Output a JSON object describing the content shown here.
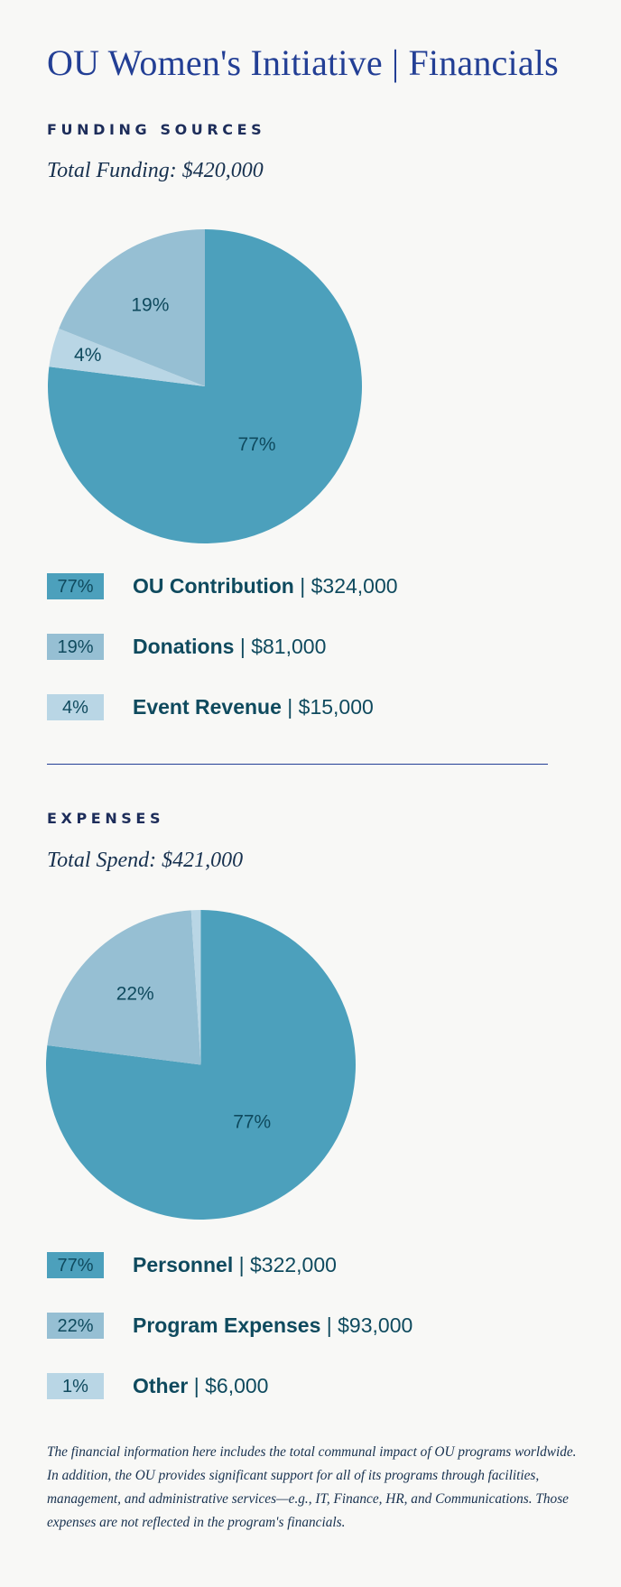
{
  "page": {
    "title": "OU Women's Initiative | Financials"
  },
  "funding": {
    "heading": "FUNDING SOURCES",
    "total": "Total Funding: $420,000",
    "legend": [
      {
        "pct": "77%",
        "label": "OU Contribution",
        "amount": "$324,000"
      },
      {
        "pct": "19%",
        "label": "Donations",
        "amount": "$81,000"
      },
      {
        "pct": "4%",
        "label": "Event Revenue",
        "amount": "$15,000"
      }
    ]
  },
  "expenses": {
    "heading": "EXPENSES",
    "total": "Total Spend: $421,000",
    "legend": [
      {
        "pct": "77%",
        "label": "Personnel",
        "amount": "$322,000"
      },
      {
        "pct": "22%",
        "label": "Program Expenses",
        "amount": "$93,000"
      },
      {
        "pct": "1%",
        "label": "Other",
        "amount": "$6,000"
      }
    ]
  },
  "footnote": "The financial information here includes the total communal impact of OU programs worldwide. In addition, the OU provides significant support for all of its programs through facilities, management, and administrative services—e.g., IT, Finance, HR, and Communications. Those expenses are not reflected in the program's financials.",
  "colors": {
    "dark": "#4ca0bc",
    "mid": "#96bfd3",
    "light": "#b9d6e5"
  },
  "chart_data": [
    {
      "type": "pie",
      "title": "FUNDING SOURCES",
      "categories": [
        "OU Contribution",
        "Donations",
        "Event Revenue"
      ],
      "values": [
        77,
        19,
        4
      ],
      "amounts": [
        324000,
        81000,
        15000
      ],
      "slice_labels": [
        "77%",
        "19%",
        "4%"
      ],
      "colors": [
        "#4ca0bc",
        "#96bfd3",
        "#b9d6e5"
      ],
      "draw_order": [
        0,
        2,
        1
      ]
    },
    {
      "type": "pie",
      "title": "EXPENSES",
      "categories": [
        "Personnel",
        "Program Expenses",
        "Other"
      ],
      "values": [
        77,
        22,
        1
      ],
      "amounts": [
        322000,
        93000,
        6000
      ],
      "slice_labels": [
        "77%",
        "22%",
        ""
      ],
      "colors": [
        "#4ca0bc",
        "#96bfd3",
        "#b9d6e5"
      ],
      "draw_order": [
        0,
        1,
        2
      ]
    }
  ]
}
